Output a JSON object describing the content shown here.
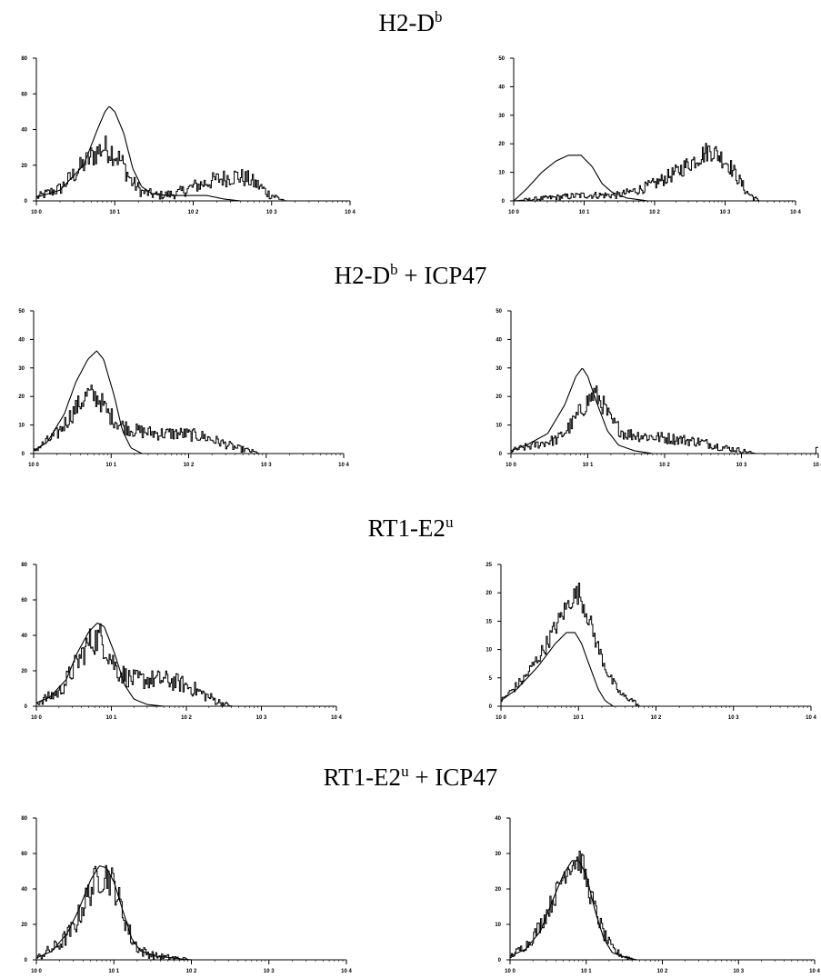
{
  "rows": [
    {
      "title": "H2-D",
      "sup": "b",
      "suffix": ""
    },
    {
      "title": "H2-D",
      "sup": "b",
      "suffix": " + ICP47"
    },
    {
      "title": "RT1-E2",
      "sup": "u",
      "suffix": ""
    },
    {
      "title": "RT1-E2",
      "sup": "u",
      "suffix": " + ICP47"
    }
  ],
  "chart_data": [
    {
      "type": "line",
      "row": 0,
      "panel": "left",
      "x_scale": "log",
      "xlim": [
        1,
        10000
      ],
      "x_tick_labels": [
        "10 0",
        "10 1",
        "10 2",
        "10 3",
        "10 4"
      ],
      "ylim": [
        0,
        80
      ],
      "y_ticks": [
        0,
        20,
        40,
        60,
        80
      ],
      "series": [
        {
          "style": "smooth",
          "points": [
            [
              1,
              2
            ],
            [
              2,
              6
            ],
            [
              4,
              20
            ],
            [
              6,
              40
            ],
            [
              7.5,
              50
            ],
            [
              8.5,
              53
            ],
            [
              10,
              50
            ],
            [
              13,
              38
            ],
            [
              17,
              18
            ],
            [
              22,
              8
            ],
            [
              30,
              4
            ],
            [
              50,
              3
            ],
            [
              80,
              3
            ],
            [
              150,
              3
            ],
            [
              250,
              1
            ],
            [
              400,
              0
            ]
          ]
        },
        {
          "style": "noisy",
          "points": [
            [
              1,
              2
            ],
            [
              2,
              7
            ],
            [
              3,
              15
            ],
            [
              5,
              25
            ],
            [
              7,
              30
            ],
            [
              9,
              28
            ],
            [
              12,
              22
            ],
            [
              16,
              11
            ],
            [
              22,
              5
            ],
            [
              35,
              3
            ],
            [
              60,
              4
            ],
            [
              100,
              8
            ],
            [
              200,
              12
            ],
            [
              350,
              14
            ],
            [
              500,
              12
            ],
            [
              700,
              8
            ],
            [
              900,
              4
            ],
            [
              1300,
              1
            ],
            [
              1500,
              0
            ]
          ]
        }
      ]
    },
    {
      "type": "line",
      "row": 0,
      "panel": "right",
      "x_scale": "log",
      "xlim": [
        1,
        10000
      ],
      "x_tick_labels": [
        "10 0",
        "10 1",
        "10 2",
        "10 3",
        "10 4"
      ],
      "ylim": [
        0,
        50
      ],
      "y_ticks": [
        0,
        10,
        20,
        30,
        40,
        50
      ],
      "series": [
        {
          "style": "smooth",
          "points": [
            [
              1,
              0
            ],
            [
              1.5,
              4
            ],
            [
              2.5,
              10
            ],
            [
              4,
              14
            ],
            [
              6,
              16
            ],
            [
              9,
              16
            ],
            [
              13,
              12
            ],
            [
              18,
              6
            ],
            [
              25,
              3
            ],
            [
              40,
              1
            ],
            [
              80,
              0
            ],
            [
              200,
              0
            ]
          ]
        },
        {
          "style": "noisy",
          "points": [
            [
              1,
              0
            ],
            [
              3,
              1
            ],
            [
              10,
              2
            ],
            [
              30,
              2
            ],
            [
              60,
              4
            ],
            [
              100,
              6
            ],
            [
              200,
              10
            ],
            [
              400,
              15
            ],
            [
              600,
              18
            ],
            [
              800,
              16
            ],
            [
              1100,
              13
            ],
            [
              1500,
              8
            ],
            [
              2000,
              3
            ],
            [
              2600,
              1
            ],
            [
              3000,
              0
            ]
          ]
        }
      ]
    },
    {
      "type": "line",
      "row": 1,
      "panel": "left",
      "x_scale": "log",
      "xlim": [
        1,
        10000
      ],
      "x_tick_labels": [
        "10 0",
        "10 1",
        "10 2",
        "10 3",
        "10 4"
      ],
      "ylim": [
        0,
        50
      ],
      "y_ticks": [
        0,
        10,
        20,
        30,
        40,
        50
      ],
      "series": [
        {
          "style": "smooth",
          "points": [
            [
              1,
              1
            ],
            [
              1.5,
              4
            ],
            [
              2.5,
              14
            ],
            [
              3.5,
              25
            ],
            [
              5,
              33
            ],
            [
              6.5,
              36
            ],
            [
              8,
              33
            ],
            [
              11,
              20
            ],
            [
              14,
              8
            ],
            [
              18,
              2
            ],
            [
              25,
              0
            ],
            [
              45,
              0
            ]
          ]
        },
        {
          "style": "noisy",
          "points": [
            [
              1,
              1
            ],
            [
              2,
              7
            ],
            [
              3.5,
              16
            ],
            [
              5,
              21
            ],
            [
              7,
              19
            ],
            [
              9,
              14
            ],
            [
              13,
              10
            ],
            [
              20,
              8
            ],
            [
              40,
              7
            ],
            [
              80,
              7
            ],
            [
              150,
              6
            ],
            [
              250,
              4
            ],
            [
              400,
              2
            ],
            [
              600,
              1
            ],
            [
              800,
              0
            ]
          ]
        }
      ]
    },
    {
      "type": "line",
      "row": 1,
      "panel": "right",
      "x_scale": "log",
      "xlim": [
        1,
        10000
      ],
      "x_tick_labels": [
        "10 0",
        "10 1",
        "10 2",
        "10 3",
        "10 4"
      ],
      "ylim": [
        0,
        50
      ],
      "y_ticks": [
        0,
        10,
        20,
        30,
        40,
        50
      ],
      "series": [
        {
          "style": "smooth",
          "points": [
            [
              1,
              1
            ],
            [
              1.6,
              3
            ],
            [
              3,
              7
            ],
            [
              5,
              17
            ],
            [
              7,
              27
            ],
            [
              8.5,
              30
            ],
            [
              10,
              27
            ],
            [
              13,
              18
            ],
            [
              18,
              8
            ],
            [
              25,
              3
            ],
            [
              40,
              1
            ],
            [
              70,
              0
            ]
          ]
        },
        {
          "style": "noisy",
          "points": [
            [
              1,
              1
            ],
            [
              2,
              3
            ],
            [
              4,
              5
            ],
            [
              6,
              10
            ],
            [
              9,
              17
            ],
            [
              12,
              21
            ],
            [
              15,
              18
            ],
            [
              20,
              11
            ],
            [
              30,
              7
            ],
            [
              60,
              6
            ],
            [
              150,
              5
            ],
            [
              300,
              4
            ],
            [
              600,
              2
            ],
            [
              1000,
              1
            ],
            [
              1500,
              0
            ],
            [
              9000,
              0
            ],
            [
              9800,
              3
            ]
          ]
        }
      ]
    },
    {
      "type": "line",
      "row": 2,
      "panel": "left",
      "x_scale": "log",
      "xlim": [
        1,
        10000
      ],
      "x_tick_labels": [
        "10 0",
        "10 1",
        "10 2",
        "10 3",
        "10 4"
      ],
      "ylim": [
        0,
        80
      ],
      "y_ticks": [
        0,
        20,
        40,
        60,
        80
      ],
      "series": [
        {
          "style": "smooth",
          "points": [
            [
              1,
              2
            ],
            [
              1.5,
              5
            ],
            [
              2.5,
              15
            ],
            [
              3.5,
              30
            ],
            [
              5,
              42
            ],
            [
              6.5,
              47
            ],
            [
              8,
              45
            ],
            [
              11,
              30
            ],
            [
              15,
              12
            ],
            [
              20,
              4
            ],
            [
              30,
              1
            ],
            [
              50,
              0
            ]
          ]
        },
        {
          "style": "noisy",
          "points": [
            [
              1,
              2
            ],
            [
              2,
              8
            ],
            [
              3.5,
              25
            ],
            [
              5,
              36
            ],
            [
              7,
              39
            ],
            [
              9,
              30
            ],
            [
              12,
              20
            ],
            [
              18,
              15
            ],
            [
              30,
              15
            ],
            [
              50,
              15
            ],
            [
              80,
              13
            ],
            [
              120,
              10
            ],
            [
              180,
              6
            ],
            [
              280,
              2
            ],
            [
              400,
              0
            ]
          ]
        }
      ]
    },
    {
      "type": "line",
      "row": 2,
      "panel": "right",
      "x_scale": "log",
      "xlim": [
        1,
        10000
      ],
      "x_tick_labels": [
        "10 0",
        "10 1",
        "10 2",
        "10 3",
        "10 4"
      ],
      "ylim": [
        0,
        25
      ],
      "y_ticks": [
        0,
        5,
        10,
        15,
        20,
        25
      ],
      "series": [
        {
          "style": "smooth",
          "points": [
            [
              1,
              1
            ],
            [
              1.6,
              3
            ],
            [
              3,
              7
            ],
            [
              5,
              11
            ],
            [
              7,
              13
            ],
            [
              9,
              13
            ],
            [
              11,
              11
            ],
            [
              14,
              7
            ],
            [
              18,
              3
            ],
            [
              22,
              1
            ],
            [
              28,
              0
            ],
            [
              40,
              0
            ]
          ]
        },
        {
          "style": "noisy",
          "points": [
            [
              1,
              1
            ],
            [
              2,
              5
            ],
            [
              3.5,
              10
            ],
            [
              6,
              16
            ],
            [
              8,
              19
            ],
            [
              10,
              20
            ],
            [
              13,
              16
            ],
            [
              18,
              10
            ],
            [
              25,
              5
            ],
            [
              35,
              2
            ],
            [
              50,
              1
            ],
            [
              60,
              0
            ],
            [
              9700,
              0
            ],
            [
              9900,
              1
            ]
          ]
        }
      ]
    },
    {
      "type": "line",
      "row": 3,
      "panel": "left",
      "x_scale": "log",
      "xlim": [
        1,
        10000
      ],
      "x_tick_labels": [
        "10 0",
        "10 1",
        "10 2",
        "10 3",
        "10 4"
      ],
      "ylim": [
        0,
        80
      ],
      "y_ticks": [
        0,
        20,
        40,
        60,
        80
      ],
      "series": [
        {
          "style": "smooth",
          "points": [
            [
              1,
              1
            ],
            [
              1.6,
              5
            ],
            [
              2.5,
              15
            ],
            [
              3.5,
              28
            ],
            [
              5,
              45
            ],
            [
              6.5,
              53
            ],
            [
              8,
              52
            ],
            [
              10,
              44
            ],
            [
              13,
              28
            ],
            [
              17,
              12
            ],
            [
              22,
              5
            ],
            [
              35,
              2
            ],
            [
              60,
              1
            ],
            [
              90,
              0
            ]
          ]
        },
        {
          "style": "noisy",
          "points": [
            [
              1,
              1
            ],
            [
              2,
              9
            ],
            [
              3,
              18
            ],
            [
              4.5,
              36
            ],
            [
              6,
              46
            ],
            [
              8,
              48
            ],
            [
              10,
              42
            ],
            [
              13,
              26
            ],
            [
              17,
              11
            ],
            [
              22,
              5
            ],
            [
              35,
              2
            ],
            [
              60,
              1
            ],
            [
              100,
              0
            ]
          ]
        }
      ]
    },
    {
      "type": "line",
      "row": 3,
      "panel": "right",
      "x_scale": "log",
      "xlim": [
        1,
        10000
      ],
      "x_tick_labels": [
        "10 0",
        "10 1",
        "10 2",
        "10 3",
        "10 4"
      ],
      "ylim": [
        0,
        40
      ],
      "y_ticks": [
        0,
        10,
        20,
        30,
        40
      ],
      "series": [
        {
          "style": "smooth",
          "points": [
            [
              1,
              1
            ],
            [
              1.6,
              3
            ],
            [
              2.5,
              8
            ],
            [
              3.5,
              16
            ],
            [
              5,
              24
            ],
            [
              6.5,
              28
            ],
            [
              8,
              28
            ],
            [
              10,
              24
            ],
            [
              13,
              14
            ],
            [
              17,
              6
            ],
            [
              22,
              2
            ],
            [
              30,
              1
            ],
            [
              45,
              0
            ]
          ]
        },
        {
          "style": "noisy",
          "points": [
            [
              1,
              1
            ],
            [
              1.8,
              5
            ],
            [
              2.8,
              12
            ],
            [
              4,
              19
            ],
            [
              5.5,
              26
            ],
            [
              7,
              28
            ],
            [
              8.5,
              28
            ],
            [
              10,
              22
            ],
            [
              13,
              14
            ],
            [
              17,
              7
            ],
            [
              22,
              3
            ],
            [
              30,
              1
            ],
            [
              45,
              0
            ]
          ]
        }
      ]
    }
  ]
}
